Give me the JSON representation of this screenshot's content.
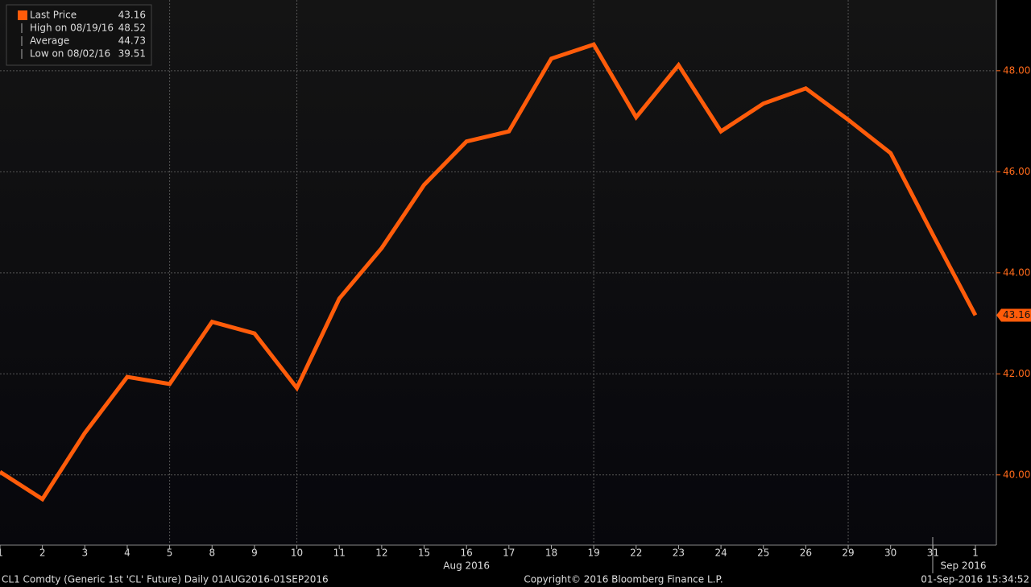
{
  "chart_data": {
    "type": "line",
    "categories": [
      "1",
      "2",
      "3",
      "4",
      "5",
      "8",
      "9",
      "10",
      "11",
      "12",
      "15",
      "16",
      "17",
      "18",
      "19",
      "22",
      "23",
      "24",
      "25",
      "26",
      "29",
      "30",
      "31",
      "1"
    ],
    "month_labels": [
      {
        "label": "Aug 2016",
        "category_index": 11
      },
      {
        "label": "Sep 2016",
        "category_index": 23
      }
    ],
    "series": [
      {
        "name": "Last Price",
        "color": "#ff5c0a",
        "values": [
          40.06,
          39.52,
          40.83,
          41.94,
          41.8,
          43.03,
          42.8,
          41.72,
          43.49,
          44.49,
          45.74,
          46.6,
          46.8,
          48.24,
          48.52,
          47.08,
          48.11,
          46.8,
          47.35,
          47.65,
          47.03,
          46.37,
          44.75,
          43.16
        ]
      }
    ],
    "last_value_label": "43.16",
    "legend": [
      {
        "name": "Last Price",
        "value": "43.16"
      },
      {
        "name": "High on 08/19/16",
        "value": "48.52"
      },
      {
        "name": "Average",
        "value": "44.73"
      },
      {
        "name": "Low on 08/02/16",
        "value": "39.51"
      }
    ],
    "legend_position": "upper left",
    "ylim": [
      38.61,
      49.4
    ],
    "yticks": [
      {
        "value": 40,
        "label": "40.00"
      },
      {
        "value": 42,
        "label": "42.00"
      },
      {
        "value": 44,
        "label": "44.00"
      },
      {
        "value": 46,
        "label": "46.00"
      },
      {
        "value": 48,
        "label": "48.00"
      }
    ],
    "grid": true,
    "x_grid_categories": [
      4,
      7,
      14,
      20
    ],
    "footer_left": "CL1 Comdty (Generic 1st 'CL' Future)  Daily 01AUG2016-01SEP2016",
    "footer_center": "Copyright© 2016 Bloomberg Finance L.P.",
    "footer_right": "01-Sep-2016 15:34:52"
  }
}
